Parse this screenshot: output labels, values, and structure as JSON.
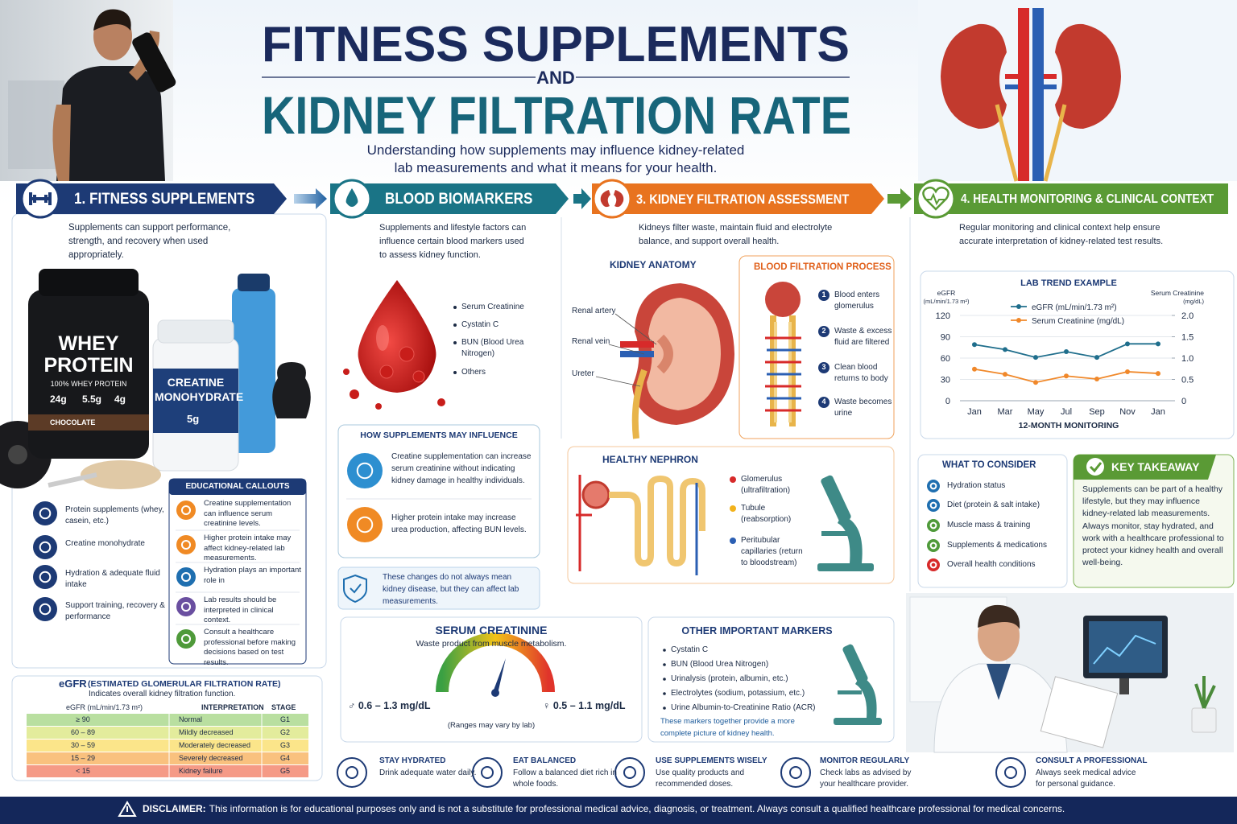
{
  "header": {
    "title_line1": "FITNESS SUPPLEMENTS",
    "connector": "AND",
    "title_line2": "KIDNEY FILTRATION RATE",
    "subtitle": [
      "Understanding how supplements may influence kidney-related",
      "lab measurements and what it means for your health."
    ]
  },
  "section1": {
    "heading": "1. FITNESS SUPPLEMENTS",
    "intro": "Supplements can support performance, strength, and recovery when used appropriately.",
    "products": {
      "whey_name": "WHEY PROTEIN",
      "whey_type": "100% WHEY PROTEIN",
      "whey_stats": [
        "24g",
        "5.5g",
        "4g"
      ],
      "whey_flavor": "CHOCOLATE",
      "creatine_name": "CREATINE MONOHYDRATE",
      "creatine_dose": "5g"
    },
    "items": [
      "Protein supplements (whey, casein, etc.)",
      "Creatine monohydrate",
      "Hydration & adequate fluid intake",
      "Support training, recovery & performance"
    ],
    "callouts": {
      "title": "EDUCATIONAL CALLOUTS",
      "items": [
        "Creatine supplementation can influence serum creatinine levels.",
        "Higher protein intake may affect kidney-related lab measurements.",
        "Hydration plays an important role in",
        "Lab results should be interpreted in clinical context.",
        "Consult a healthcare professional before making decisions based on test results."
      ]
    }
  },
  "section2": {
    "heading": "BLOOD BIOMARKERS",
    "intro": "Supplements and lifestyle factors can influence certain blood markers used to assess kidney function.",
    "markers": [
      "Serum Creatinine",
      "Cystatin C",
      "BUN (Blood Urea Nitrogen)",
      "Others"
    ],
    "influence": {
      "title": "HOW SUPPLEMENTS MAY INFLUENCE",
      "items": [
        "Creatine supplementation can increase serum creatinine without indicating kidney damage in healthy individuals.",
        "Higher protein intake may increase urea production, affecting BUN levels."
      ]
    },
    "note": "These changes do not always mean kidney disease, but they can affect lab measurements."
  },
  "section3": {
    "heading": "3. KIDNEY FILTRATION ASSESSMENT",
    "intro": "Kidneys filter waste, maintain fluid and electrolyte balance, and support overall health.",
    "anatomy": {
      "title": "KIDNEY ANATOMY",
      "labels": [
        "Renal artery",
        "Renal vein",
        "Ureter"
      ]
    },
    "filtration": {
      "title": "BLOOD FILTRATION PROCESS",
      "steps": [
        {
          "number": 1,
          "text": "Blood enters glomerulus"
        },
        {
          "number": 2,
          "text": "Waste & excess fluid are filtered"
        },
        {
          "number": 3,
          "text": "Clean blood returns to body"
        },
        {
          "number": 4,
          "text": "Waste becomes urine"
        }
      ]
    },
    "nephron": {
      "title": "HEALTHY NEPHRON",
      "items": [
        "Glomerulus (ultrafiltration)",
        "Tubule (reabsorption)",
        "Peritubular capillaries (return to bloodstream)"
      ]
    }
  },
  "section4": {
    "heading": "4. HEALTH MONITORING & CLINICAL CONTEXT",
    "intro": "Regular monitoring and clinical context help ensure accurate interpretation of kidney-related test results.",
    "consider": {
      "title": "WHAT TO CONSIDER",
      "items": [
        "Hydration status",
        "Diet (protein & salt intake)",
        "Muscle mass & training",
        "Supplements & medications",
        "Overall health conditions"
      ]
    },
    "takeaway": {
      "title": "KEY TAKEAWAY",
      "text": "Supplements can be part of a healthy lifestyle, but they may influence kidney-related lab measurements. Always monitor, stay hydrated, and work with a healthcare professional to protect your kidney health and overall well-being."
    }
  },
  "chart_data": {
    "type": "line",
    "title": "LAB TREND EXAMPLE",
    "ylabel": [
      "eGFR",
      "(mL/min/1.73 m²)"
    ],
    "y2label": [
      "Serum Creatinine",
      "(mg/dL)"
    ],
    "xlabel": "12-MONTH MONITORING",
    "categories": [
      "Jan",
      "Mar",
      "May",
      "Jul",
      "Sep",
      "Nov",
      "Jan"
    ],
    "series": [
      {
        "name": "eGFR (mL/min/1.73 m²)",
        "color": "#1f6e8c",
        "values": [
          79,
          72,
          61,
          69,
          61,
          80,
          80
        ]
      },
      {
        "name": "Serum Creatinine (mg/dL)",
        "color": "#f0882a",
        "axis": "y2",
        "values": [
          0.74,
          0.62,
          0.43,
          0.58,
          0.51,
          0.68,
          0.64
        ]
      }
    ],
    "ylim": [
      0,
      120
    ],
    "yticks": [
      0,
      30,
      60,
      90,
      120
    ],
    "y2lim": [
      0,
      2
    ],
    "y2ticks": [
      0,
      0.5,
      {
        "value": 1,
        "label": "1.0"
      },
      1.5,
      {
        "value": 2,
        "label": "2.0"
      }
    ],
    "grid": true,
    "legend": "top"
  },
  "egfr_table": {
    "title": "eGFR",
    "title_rest": "(ESTIMATED GLOMERULAR FILTRATION RATE)",
    "subtitle": "Indicates overall kidney filtration function.",
    "headers": [
      "eGFR (mL/min/1.73 m²)",
      "INTERPRETATION",
      "STAGE"
    ],
    "rows": [
      {
        "egfr": "≥ 90",
        "interpretation": "Normal",
        "stage": "G1"
      },
      {
        "egfr": "60 – 89",
        "interpretation": "Mildly decreased",
        "stage": "G2"
      },
      {
        "egfr": "30 – 59",
        "interpretation": "Moderately decreased",
        "stage": "G3"
      },
      {
        "egfr": "15 – 29",
        "interpretation": "Severely decreased",
        "stage": "G4"
      },
      {
        "egfr": "< 15",
        "interpretation": "Kidney failure",
        "stage": "G5"
      }
    ]
  },
  "serum_creatinine": {
    "title": "SERUM CREATININE",
    "subtitle": "Waste product from muscle metabolism.",
    "male": "♂ 0.6 – 1.3 mg/dL",
    "female": "♀ 0.5 – 1.1 mg/dL",
    "note": "(Ranges may vary by lab)"
  },
  "other_markers": {
    "title": "OTHER IMPORTANT MARKERS",
    "items": [
      "Cystatin C",
      "BUN (Blood Urea Nitrogen)",
      "Urinalysis (protein, albumin, etc.)",
      "Electrolytes (sodium, potassium, etc.)",
      "Urine Albumin-to-Creatinine Ratio (ACR)"
    ],
    "note": "These markers together provide a more complete picture of kidney health."
  },
  "tips": [
    {
      "title": "STAY HYDRATED",
      "text": "Drink adequate water daily."
    },
    {
      "title": "EAT BALANCED",
      "text": "Follow a balanced diet rich in whole foods."
    },
    {
      "title": "USE SUPPLEMENTS WISELY",
      "text": "Use quality products and recommended doses."
    },
    {
      "title": "MONITOR REGULARLY",
      "text": "Check labs as advised by your healthcare provider."
    },
    {
      "title": "CONSULT A PROFESSIONAL",
      "text": "Always seek medical advice for personal guidance."
    }
  ],
  "disclaimer": {
    "label": "DISCLAIMER:",
    "text": "This information is for educational purposes only and is not a substitute for professional medical advice, diagnosis, or treatment. Always consult a qualified healthcare professional for medical concerns."
  }
}
